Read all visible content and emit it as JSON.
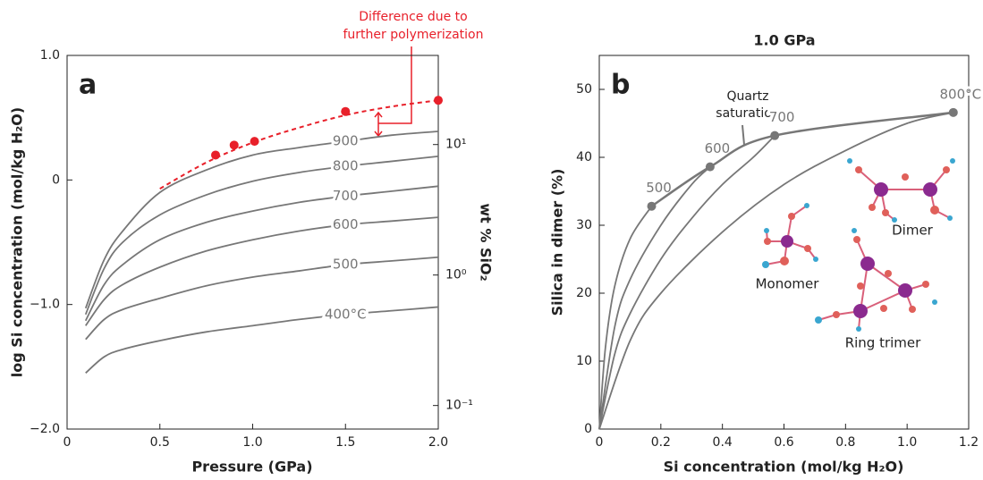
{
  "chart_data": [
    {
      "type": "line",
      "panel_label": "a",
      "xlabel": "Pressure (GPa)",
      "ylabel": "log Si concentration (mol/kg H₂O)",
      "y2label": "wt % SiO₂",
      "xlim": [
        0,
        2
      ],
      "xticks": [
        0,
        0.5,
        {
          "value": 1,
          "label": "1.0"
        },
        1.5,
        {
          "value": 2,
          "label": "2.0"
        }
      ],
      "ylim": [
        -2,
        1
      ],
      "yticks": [
        {
          "value": -2,
          "label": "−2.0"
        },
        {
          "value": -1,
          "label": "−1.0"
        },
        0,
        {
          "value": 1,
          "label": "1.0"
        }
      ],
      "y2lim": [
        0.066,
        48.2
      ],
      "y2log": true,
      "y2ticks": [
        {
          "value": 0.1,
          "label": "10⁻¹"
        },
        {
          "value": 1,
          "label": "10⁰"
        },
        {
          "value": 10,
          "label": "10¹"
        }
      ],
      "annotation": [
        "Difference due to",
        "further polymerization"
      ],
      "annotation_color": "#e8202a",
      "series": [
        {
          "name": "400°C",
          "color": "#777777",
          "x": [
            0.1,
            0.2,
            0.3,
            0.5,
            0.75,
            1.0,
            1.25,
            1.5,
            1.75,
            2.0
          ],
          "values": [
            -1.55,
            -1.42,
            -1.36,
            -1.29,
            -1.22,
            -1.17,
            -1.12,
            -1.08,
            -1.05,
            -1.02
          ]
        },
        {
          "name": "500",
          "color": "#777777",
          "x": [
            0.1,
            0.2,
            0.3,
            0.5,
            0.75,
            1.0,
            1.25,
            1.5,
            1.75,
            2.0
          ],
          "values": [
            -1.28,
            -1.12,
            -1.04,
            -0.95,
            -0.85,
            -0.78,
            -0.73,
            -0.68,
            -0.65,
            -0.62
          ]
        },
        {
          "name": "600",
          "color": "#777777",
          "x": [
            0.1,
            0.2,
            0.3,
            0.5,
            0.75,
            1.0,
            1.25,
            1.5,
            1.75,
            2.0
          ],
          "values": [
            -1.17,
            -0.96,
            -0.84,
            -0.7,
            -0.57,
            -0.48,
            -0.41,
            -0.36,
            -0.33,
            -0.3
          ]
        },
        {
          "name": "700",
          "color": "#777777",
          "x": [
            0.1,
            0.2,
            0.3,
            0.5,
            0.75,
            1.0,
            1.25,
            1.5,
            1.75,
            2.0
          ],
          "values": [
            -1.13,
            -0.84,
            -0.68,
            -0.48,
            -0.34,
            -0.25,
            -0.18,
            -0.13,
            -0.09,
            -0.05
          ]
        },
        {
          "name": "800",
          "color": "#777777",
          "x": [
            0.1,
            0.2,
            0.3,
            0.5,
            0.75,
            1.0,
            1.25,
            1.5,
            1.75,
            2.0
          ],
          "values": [
            -1.08,
            -0.71,
            -0.5,
            -0.28,
            -0.12,
            -0.01,
            0.06,
            0.11,
            0.15,
            0.19
          ]
        },
        {
          "name": "900",
          "color": "#777777",
          "x": [
            0.1,
            0.2,
            0.3,
            0.5,
            0.75,
            1.0,
            1.25,
            1.5,
            1.75,
            2.0
          ],
          "values": [
            -1.03,
            -0.64,
            -0.41,
            -0.1,
            0.08,
            0.2,
            0.26,
            0.31,
            0.36,
            0.39
          ]
        },
        {
          "color": "#e8202a",
          "style": "dashed",
          "x": [
            0.5,
            0.75,
            1.0,
            1.25,
            1.5,
            1.75,
            2.0
          ],
          "values": [
            -0.07,
            0.14,
            0.3,
            0.42,
            0.52,
            0.59,
            0.64
          ]
        },
        {
          "color": "#e8202a",
          "style": "markers",
          "x": [
            0.8,
            0.9,
            1.01,
            1.5,
            2.0
          ],
          "values": [
            0.2,
            0.28,
            0.31,
            0.55,
            0.64
          ]
        }
      ]
    },
    {
      "type": "line",
      "panel_label": "b",
      "title": "1.0 GPa",
      "xlabel": "Si concentration (mol/kg H₂O)",
      "ylabel": "Silica in dimer (%)",
      "xlim": [
        0,
        1.2
      ],
      "xticks": [
        0,
        0.2,
        0.4,
        0.6,
        0.8,
        {
          "value": 1,
          "label": "1.0"
        },
        1.2
      ],
      "ylim": [
        0,
        55
      ],
      "yticks": [
        0,
        10,
        20,
        30,
        40,
        50
      ],
      "annotation": [
        "Quartz",
        "saturation"
      ],
      "molecules": [
        "Monomer",
        "Dimer",
        "Ring trimer"
      ],
      "series": [
        {
          "name": "500",
          "color": "#777777",
          "x": [
            0,
            0.02,
            0.05,
            0.1,
            0.17
          ],
          "values": [
            0,
            12,
            21,
            28,
            32.8
          ]
        },
        {
          "name": "600",
          "color": "#777777",
          "x": [
            0,
            0.05,
            0.1,
            0.2,
            0.3,
            0.36
          ],
          "values": [
            0,
            15,
            22,
            30,
            36,
            38.6
          ]
        },
        {
          "name": "700",
          "color": "#777777",
          "x": [
            0,
            0.05,
            0.1,
            0.2,
            0.3,
            0.4,
            0.5,
            0.57
          ],
          "values": [
            0,
            11,
            17,
            25,
            31,
            36,
            40,
            43.2
          ]
        },
        {
          "name": "800°C",
          "color": "#777777",
          "x": [
            0,
            0.1,
            0.2,
            0.4,
            0.6,
            0.8,
            1.0,
            1.15
          ],
          "values": [
            0,
            13,
            20,
            29,
            36,
            41,
            45,
            46.6
          ]
        },
        {
          "color": "#777777",
          "style": "line+markers",
          "x": [
            0.17,
            0.36,
            0.57,
            1.15
          ],
          "values": [
            32.8,
            38.6,
            43.2,
            46.6
          ]
        }
      ]
    }
  ]
}
